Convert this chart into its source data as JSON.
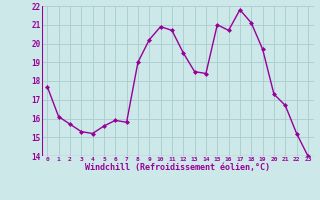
{
  "x": [
    0,
    1,
    2,
    3,
    4,
    5,
    6,
    7,
    8,
    9,
    10,
    11,
    12,
    13,
    14,
    15,
    16,
    17,
    18,
    19,
    20,
    21,
    22,
    23
  ],
  "y": [
    17.7,
    16.1,
    15.7,
    15.3,
    15.2,
    15.6,
    15.9,
    15.8,
    19.0,
    20.2,
    20.9,
    20.7,
    19.5,
    18.5,
    18.4,
    21.0,
    20.7,
    21.8,
    21.1,
    19.7,
    17.3,
    16.7,
    15.2,
    14.0
  ],
  "line_color": "#990099",
  "marker": "D",
  "marker_size": 2.0,
  "bg_color": "#cce8e8",
  "grid_color": "#aacccc",
  "ylim": [
    14,
    22
  ],
  "xlim": [
    -0.5,
    23.5
  ],
  "yticks": [
    14,
    15,
    16,
    17,
    18,
    19,
    20,
    21,
    22
  ],
  "xticks": [
    0,
    1,
    2,
    3,
    4,
    5,
    6,
    7,
    8,
    9,
    10,
    11,
    12,
    13,
    14,
    15,
    16,
    17,
    18,
    19,
    20,
    21,
    22,
    23
  ],
  "xlabel": "Windchill (Refroidissement éolien,°C)",
  "xlabel_color": "#990099",
  "tick_color": "#990099",
  "line_width": 1.0
}
